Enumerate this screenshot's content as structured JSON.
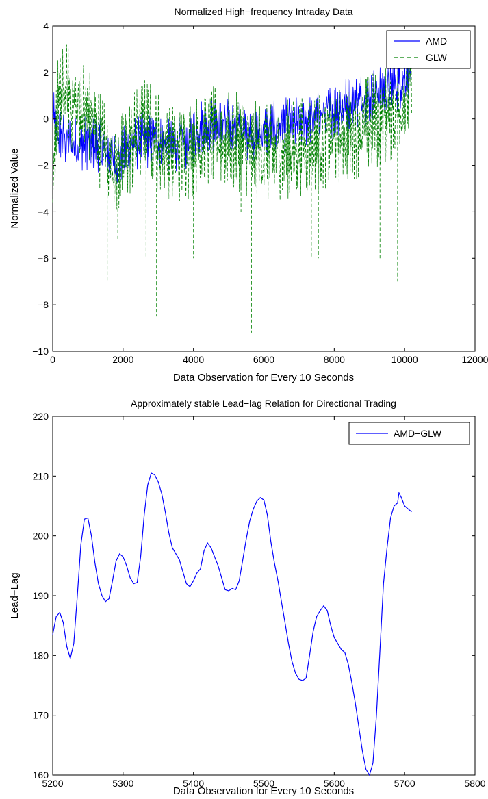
{
  "chart_data": [
    {
      "type": "line",
      "title": "Normalized High−frequency Intraday Data",
      "xlabel": "Data Observation for Every 10 Seconds",
      "ylabel": "Normalized Value",
      "xlim": [
        0,
        12000
      ],
      "ylim": [
        -10,
        4
      ],
      "xticks": [
        0,
        2000,
        4000,
        6000,
        8000,
        10000,
        12000
      ],
      "xtick_labels": [
        "0",
        "2000",
        "4000",
        "6000",
        "8000",
        "10000",
        "12000"
      ],
      "yticks": [
        -10,
        -8,
        -6,
        -4,
        -2,
        0,
        2,
        4
      ],
      "ytick_labels": [
        "−10",
        "−8",
        "−6",
        "−4",
        "−2",
        "0",
        "2",
        "4"
      ],
      "grid": false,
      "legend_position": "top-right",
      "series": [
        {
          "name": "AMD",
          "color": "#0000ff",
          "line_style": "solid",
          "points": [
            [
              0,
              0.3
            ],
            [
              100,
              -0.8
            ],
            [
              200,
              -0.6
            ],
            [
              400,
              -1.0
            ],
            [
              700,
              -1.1
            ],
            [
              1000,
              -1.0
            ],
            [
              1300,
              -1.1
            ],
            [
              1600,
              -1.5
            ],
            [
              1800,
              -1.8
            ],
            [
              2000,
              -1.5
            ],
            [
              2300,
              -1.1
            ],
            [
              2600,
              -0.9
            ],
            [
              2800,
              -1.0
            ],
            [
              3000,
              -1.0
            ],
            [
              3300,
              -1.2
            ],
            [
              3600,
              -1.1
            ],
            [
              3800,
              -1.0
            ],
            [
              4000,
              -0.7
            ],
            [
              4300,
              -0.2
            ],
            [
              4600,
              -0.3
            ],
            [
              5000,
              -0.3
            ],
            [
              5300,
              -0.4
            ],
            [
              5600,
              -0.6
            ],
            [
              5800,
              -0.7
            ],
            [
              6000,
              -0.5
            ],
            [
              6500,
              -0.3
            ],
            [
              7000,
              -0.2
            ],
            [
              7500,
              0.1
            ],
            [
              8000,
              0.4
            ],
            [
              8500,
              0.7
            ],
            [
              9000,
              1.0
            ],
            [
              9500,
              1.3
            ],
            [
              9800,
              1.5
            ],
            [
              10000,
              1.8
            ],
            [
              10200,
              2.3
            ]
          ],
          "spread": 0.9,
          "spikes": []
        },
        {
          "name": "GLW",
          "color": "#008000",
          "line_style": "dashed",
          "points": [
            [
              0,
              -4.5
            ],
            [
              50,
              -2.0
            ],
            [
              100,
              0.3
            ],
            [
              200,
              0.8
            ],
            [
              400,
              1.2
            ],
            [
              600,
              0.6
            ],
            [
              800,
              0.5
            ],
            [
              1000,
              0.3
            ],
            [
              1200,
              -0.5
            ],
            [
              1400,
              -1.0
            ],
            [
              1600,
              -1.5
            ],
            [
              1800,
              -2.0
            ],
            [
              2000,
              -1.8
            ],
            [
              2200,
              -1.2
            ],
            [
              2500,
              -0.5
            ],
            [
              2700,
              -0.3
            ],
            [
              2900,
              -0.8
            ],
            [
              3200,
              -1.2
            ],
            [
              3500,
              -1.5
            ],
            [
              3800,
              -1.4
            ],
            [
              4000,
              -1.2
            ],
            [
              4300,
              -0.8
            ],
            [
              4600,
              -0.7
            ],
            [
              5000,
              -1.0
            ],
            [
              5300,
              -1.0
            ],
            [
              5600,
              -1.3
            ],
            [
              5800,
              -1.4
            ],
            [
              6000,
              -1.5
            ],
            [
              6300,
              -1.5
            ],
            [
              6600,
              -1.3
            ],
            [
              7000,
              -1.2
            ],
            [
              7500,
              -1.0
            ],
            [
              8000,
              -0.8
            ],
            [
              8500,
              -0.5
            ],
            [
              9000,
              -0.2
            ],
            [
              9500,
              0.2
            ],
            [
              10000,
              0.6
            ],
            [
              10200,
              1.5
            ]
          ],
          "spread": 1.6,
          "spikes": [
            [
              1550,
              -7.0
            ],
            [
              1850,
              -5.2
            ],
            [
              2650,
              -6.0
            ],
            [
              2950,
              -8.5
            ],
            [
              4000,
              -6.0
            ],
            [
              5350,
              -4.0
            ],
            [
              5650,
              -9.2
            ],
            [
              7350,
              -6.0
            ],
            [
              7550,
              -6.0
            ],
            [
              9300,
              -6.0
            ],
            [
              9800,
              -7.0
            ]
          ]
        }
      ]
    },
    {
      "type": "line",
      "title": "Approximately stable Lead−lag Relation for Directional Trading",
      "xlabel": "Data Observation for Every 10 Seconds",
      "ylabel": "Lead−Lag",
      "xlim": [
        5200,
        5800
      ],
      "ylim": [
        160,
        220
      ],
      "xticks": [
        5200,
        5300,
        5400,
        5500,
        5600,
        5700,
        5800
      ],
      "xtick_labels": [
        "5200",
        "5300",
        "5400",
        "5500",
        "5600",
        "5700",
        "5800"
      ],
      "yticks": [
        160,
        170,
        180,
        190,
        200,
        210,
        220
      ],
      "ytick_labels": [
        "160",
        "170",
        "180",
        "190",
        "200",
        "210",
        "220"
      ],
      "grid": false,
      "legend_position": "top-right",
      "series": [
        {
          "name": "AMD−GLW",
          "color": "#0000ff",
          "line_style": "solid",
          "points": [
            [
              5200,
              183.5
            ],
            [
              5205,
              186.5
            ],
            [
              5210,
              187.2
            ],
            [
              5215,
              185.5
            ],
            [
              5220,
              181.5
            ],
            [
              5225,
              179.5
            ],
            [
              5230,
              182.0
            ],
            [
              5235,
              190.0
            ],
            [
              5240,
              198.5
            ],
            [
              5245,
              202.8
            ],
            [
              5250,
              203.0
            ],
            [
              5255,
              200.0
            ],
            [
              5260,
              195.5
            ],
            [
              5265,
              192.0
            ],
            [
              5270,
              190.0
            ],
            [
              5275,
              189.0
            ],
            [
              5280,
              189.5
            ],
            [
              5285,
              192.5
            ],
            [
              5290,
              195.8
            ],
            [
              5295,
              197.0
            ],
            [
              5300,
              196.5
            ],
            [
              5305,
              195.0
            ],
            [
              5310,
              193.0
            ],
            [
              5315,
              192.0
            ],
            [
              5320,
              192.2
            ],
            [
              5325,
              196.5
            ],
            [
              5330,
              203.5
            ],
            [
              5335,
              208.5
            ],
            [
              5340,
              210.5
            ],
            [
              5345,
              210.2
            ],
            [
              5350,
              209.0
            ],
            [
              5355,
              207.0
            ],
            [
              5360,
              204.0
            ],
            [
              5365,
              200.5
            ],
            [
              5370,
              198.0
            ],
            [
              5375,
              197.0
            ],
            [
              5380,
              196.0
            ],
            [
              5385,
              194.0
            ],
            [
              5390,
              192.0
            ],
            [
              5395,
              191.5
            ],
            [
              5400,
              192.5
            ],
            [
              5405,
              193.8
            ],
            [
              5410,
              194.5
            ],
            [
              5415,
              197.5
            ],
            [
              5420,
              198.8
            ],
            [
              5425,
              198.0
            ],
            [
              5430,
              196.5
            ],
            [
              5435,
              195.0
            ],
            [
              5440,
              193.0
            ],
            [
              5445,
              191.0
            ],
            [
              5450,
              190.8
            ],
            [
              5455,
              191.2
            ],
            [
              5460,
              191.0
            ],
            [
              5465,
              192.5
            ],
            [
              5470,
              196.0
            ],
            [
              5475,
              199.5
            ],
            [
              5480,
              202.5
            ],
            [
              5485,
              204.5
            ],
            [
              5490,
              205.8
            ],
            [
              5495,
              206.4
            ],
            [
              5500,
              206.0
            ],
            [
              5505,
              203.5
            ],
            [
              5510,
              199.0
            ],
            [
              5515,
              195.5
            ],
            [
              5520,
              192.5
            ],
            [
              5525,
              189.0
            ],
            [
              5530,
              185.5
            ],
            [
              5535,
              182.0
            ],
            [
              5540,
              179.0
            ],
            [
              5545,
              177.0
            ],
            [
              5550,
              176.0
            ],
            [
              5555,
              175.8
            ],
            [
              5560,
              176.2
            ],
            [
              5565,
              180.0
            ],
            [
              5570,
              184.0
            ],
            [
              5575,
              186.5
            ],
            [
              5580,
              187.5
            ],
            [
              5585,
              188.3
            ],
            [
              5590,
              187.5
            ],
            [
              5595,
              185.0
            ],
            [
              5600,
              183.0
            ],
            [
              5605,
              182.0
            ],
            [
              5610,
              181.0
            ],
            [
              5615,
              180.5
            ],
            [
              5620,
              178.5
            ],
            [
              5625,
              175.5
            ],
            [
              5630,
              172.0
            ],
            [
              5635,
              168.0
            ],
            [
              5640,
              164.0
            ],
            [
              5645,
              161.0
            ],
            [
              5650,
              160.0
            ],
            [
              5655,
              162.0
            ],
            [
              5660,
              170.0
            ],
            [
              5665,
              181.0
            ],
            [
              5670,
              192.0
            ],
            [
              5675,
              198.0
            ],
            [
              5680,
              203.0
            ],
            [
              5685,
              205.0
            ],
            [
              5690,
              205.5
            ],
            [
              5692,
              207.2
            ],
            [
              5695,
              206.5
            ],
            [
              5700,
              205.0
            ],
            [
              5705,
              204.5
            ],
            [
              5710,
              204.0
            ]
          ]
        }
      ]
    }
  ]
}
